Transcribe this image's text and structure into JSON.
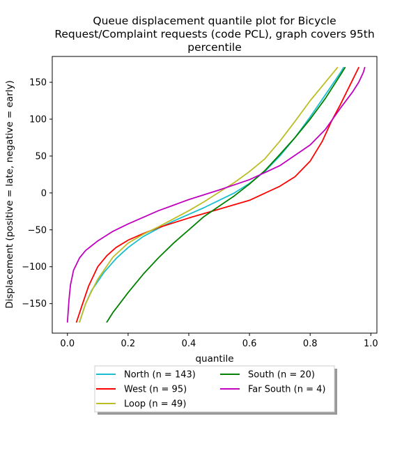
{
  "chart_data": {
    "type": "line",
    "title_lines": [
      "Queue displacement quantile plot for Bicycle",
      "Request/Complaint  requests (code PCL), graph covers 95th",
      "percentile"
    ],
    "xlabel": "quantile",
    "ylabel": "Displacement (positive = late, negative = early)",
    "xlim": [
      -0.05,
      1.02
    ],
    "ylim": [
      -190,
      185
    ],
    "xticks": [
      0.0,
      0.2,
      0.4,
      0.6,
      0.8,
      1.0
    ],
    "xtick_labels": [
      "0.0",
      "0.2",
      "0.4",
      "0.6",
      "0.8",
      "1.0"
    ],
    "yticks": [
      150,
      100,
      50,
      0,
      -50,
      -100,
      -150
    ],
    "ytick_labels": [
      "150",
      "100",
      "50",
      "0",
      "−50",
      "−100",
      "−150"
    ],
    "grid": false,
    "legend_position": "below the plot, two columns",
    "series": [
      {
        "name": "North (n = 143)",
        "color": "#17becf",
        "x": [
          0.04,
          0.06,
          0.08,
          0.12,
          0.16,
          0.2,
          0.25,
          0.3,
          0.35,
          0.4,
          0.45,
          0.5,
          0.55,
          0.6,
          0.65,
          0.7,
          0.75,
          0.8,
          0.85,
          0.9,
          0.91
        ],
        "y": [
          -175,
          -150,
          -132,
          -108,
          -89,
          -74,
          -59,
          -48,
          -38,
          -29,
          -20,
          -10,
          0,
          13,
          29,
          50,
          75,
          103,
          133,
          163,
          170
        ]
      },
      {
        "name": "West (n = 95)",
        "color": "#ff0000",
        "x": [
          0.03,
          0.05,
          0.07,
          0.1,
          0.13,
          0.16,
          0.2,
          0.25,
          0.3,
          0.4,
          0.5,
          0.6,
          0.7,
          0.75,
          0.8,
          0.84,
          0.87,
          0.9,
          0.93,
          0.96
        ],
        "y": [
          -175,
          -150,
          -126,
          -100,
          -85,
          -74,
          -64,
          -55,
          -47,
          -34,
          -22,
          -10,
          9,
          22,
          43,
          70,
          97,
          120,
          145,
          170
        ]
      },
      {
        "name": "Loop (n = 49)",
        "color": "#bcbd22",
        "x": [
          0.04,
          0.06,
          0.08,
          0.1,
          0.15,
          0.2,
          0.25,
          0.3,
          0.35,
          0.4,
          0.45,
          0.5,
          0.55,
          0.6,
          0.65,
          0.7,
          0.75,
          0.8,
          0.85,
          0.89
        ],
        "y": [
          -175,
          -150,
          -133,
          -117,
          -87,
          -68,
          -56,
          -46,
          -35,
          -24,
          -12,
          1,
          14,
          29,
          46,
          70,
          97,
          125,
          150,
          170
        ]
      },
      {
        "name": "South (n = 20)",
        "color": "#008000",
        "x": [
          0.13,
          0.15,
          0.2,
          0.25,
          0.3,
          0.35,
          0.4,
          0.45,
          0.5,
          0.55,
          0.6,
          0.65,
          0.7,
          0.75,
          0.8,
          0.85,
          0.9,
          0.915
        ],
        "y": [
          -175,
          -162,
          -135,
          -110,
          -88,
          -68,
          -50,
          -32,
          -18,
          -4,
          12,
          30,
          52,
          75,
          100,
          128,
          160,
          170
        ]
      },
      {
        "name": "Far South (n = 4)",
        "color": "#bf00bf",
        "x": [
          0.0,
          0.005,
          0.01,
          0.02,
          0.04,
          0.06,
          0.1,
          0.15,
          0.2,
          0.25,
          0.3,
          0.4,
          0.5,
          0.6,
          0.7,
          0.8,
          0.85,
          0.9,
          0.94,
          0.96,
          0.975,
          0.98
        ],
        "y": [
          -175,
          -145,
          -125,
          -105,
          -88,
          -78,
          -65,
          -52,
          -42,
          -33,
          -24,
          -9,
          4,
          18,
          37,
          65,
          86,
          115,
          137,
          150,
          163,
          170
        ]
      }
    ]
  }
}
